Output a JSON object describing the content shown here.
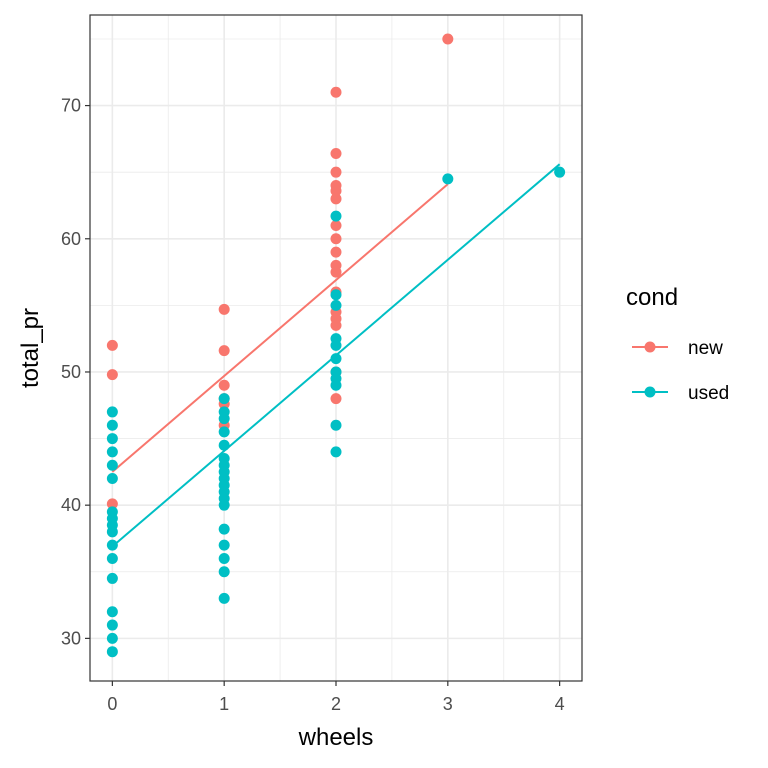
{
  "chart_data": {
    "type": "scatter",
    "xlabel": "wheels",
    "ylabel": "total_pr",
    "xlim": [
      -0.2,
      4.2
    ],
    "ylim": [
      26.8,
      76.8
    ],
    "x_ticks": [
      0,
      1,
      2,
      3,
      4
    ],
    "y_ticks": [
      30,
      40,
      50,
      60,
      70
    ],
    "grid": true,
    "legend": {
      "title": "cond",
      "placement": "right"
    },
    "series": [
      {
        "name": "new",
        "color": "#F8766D",
        "points": [
          [
            0,
            52.0
          ],
          [
            0,
            49.8
          ],
          [
            0,
            40.1
          ],
          [
            1,
            54.7
          ],
          [
            1,
            51.6
          ],
          [
            1,
            49.0
          ],
          [
            1,
            48.0
          ],
          [
            1,
            47.6
          ],
          [
            1,
            46.0
          ],
          [
            2,
            71.0
          ],
          [
            2,
            66.4
          ],
          [
            2,
            65.0
          ],
          [
            2,
            64.0
          ],
          [
            2,
            63.6
          ],
          [
            2,
            63.0
          ],
          [
            2,
            61.0
          ],
          [
            2,
            60.0
          ],
          [
            2,
            59.0
          ],
          [
            2,
            58.0
          ],
          [
            2,
            57.5
          ],
          [
            2,
            56.0
          ],
          [
            2,
            54.5
          ],
          [
            2,
            54.0
          ],
          [
            2,
            53.5
          ],
          [
            2,
            50.0
          ],
          [
            2,
            48.0
          ],
          [
            3,
            75.0
          ]
        ],
        "fit": {
          "x": [
            0,
            3
          ],
          "y": [
            42.5,
            64.1
          ]
        }
      },
      {
        "name": "used",
        "color": "#00BFC4",
        "points": [
          [
            0,
            47.0
          ],
          [
            0,
            46.0
          ],
          [
            0,
            45.0
          ],
          [
            0,
            44.0
          ],
          [
            0,
            43.0
          ],
          [
            0,
            42.0
          ],
          [
            0,
            39.5
          ],
          [
            0,
            39.0
          ],
          [
            0,
            38.5
          ],
          [
            0,
            38.0
          ],
          [
            0,
            37.0
          ],
          [
            0,
            36.0
          ],
          [
            0,
            34.5
          ],
          [
            0,
            32.0
          ],
          [
            0,
            31.0
          ],
          [
            0,
            30.0
          ],
          [
            0,
            29.0
          ],
          [
            1,
            48.0
          ],
          [
            1,
            47.0
          ],
          [
            1,
            46.5
          ],
          [
            1,
            45.5
          ],
          [
            1,
            44.5
          ],
          [
            1,
            43.5
          ],
          [
            1,
            43.0
          ],
          [
            1,
            42.5
          ],
          [
            1,
            42.0
          ],
          [
            1,
            41.5
          ],
          [
            1,
            41.0
          ],
          [
            1,
            40.5
          ],
          [
            1,
            40.0
          ],
          [
            1,
            38.2
          ],
          [
            1,
            37.0
          ],
          [
            1,
            36.0
          ],
          [
            1,
            35.0
          ],
          [
            1,
            33.0
          ],
          [
            2,
            61.7
          ],
          [
            2,
            55.8
          ],
          [
            2,
            55.0
          ],
          [
            2,
            52.5
          ],
          [
            2,
            52.0
          ],
          [
            2,
            51.0
          ],
          [
            2,
            50.0
          ],
          [
            2,
            49.5
          ],
          [
            2,
            49.0
          ],
          [
            2,
            46.0
          ],
          [
            2,
            44.0
          ],
          [
            3,
            64.5
          ],
          [
            4,
            65.0
          ]
        ],
        "fit": {
          "x": [
            0,
            4
          ],
          "y": [
            36.9,
            65.6
          ]
        }
      }
    ]
  }
}
